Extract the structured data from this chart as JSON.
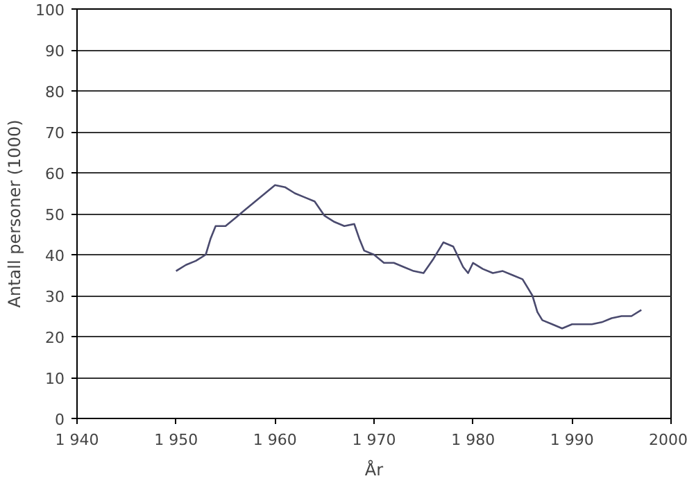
{
  "chart_data": {
    "type": "line",
    "xlabel": "År",
    "ylabel": "Antall personer (1000)",
    "x": [
      1950,
      1951,
      1952,
      1953,
      1953.5,
      1954,
      1955,
      1956,
      1957,
      1958,
      1959,
      1960,
      1961,
      1962,
      1963,
      1964,
      1965,
      1966,
      1967,
      1968,
      1968.5,
      1969,
      1970,
      1971,
      1972,
      1973,
      1974,
      1975,
      1976,
      1977,
      1978,
      1979,
      1979.5,
      1980,
      1981,
      1982,
      1983,
      1984,
      1985,
      1986,
      1986.5,
      1987,
      1988,
      1989,
      1990,
      1991,
      1992,
      1993,
      1994,
      1995,
      1996,
      1997
    ],
    "series": [
      {
        "color": "#4a4a6e",
        "values": [
          36,
          37.5,
          38.5,
          40,
          44,
          47,
          47,
          49,
          51,
          53,
          55,
          57,
          56.5,
          55,
          54,
          53,
          49.5,
          48,
          47,
          47.5,
          44,
          41,
          40,
          38,
          38,
          37,
          36,
          35.5,
          39,
          43,
          42,
          37,
          35.5,
          38,
          36.5,
          35.5,
          36,
          35,
          34,
          30,
          26,
          24,
          23,
          22,
          23,
          23,
          23,
          23.5,
          24.5,
          25,
          25,
          26.5
        ]
      }
    ],
    "xlim": [
      1940,
      2000
    ],
    "ylim": [
      0,
      100
    ],
    "xticks": [
      {
        "value": 1940,
        "label": "1 940"
      },
      {
        "value": 1950,
        "label": "1 950"
      },
      {
        "value": 1960,
        "label": "1 960"
      },
      {
        "value": 1970,
        "label": "1 970"
      },
      {
        "value": 1980,
        "label": "1 980"
      },
      {
        "value": 1990,
        "label": "1 990"
      },
      2000
    ],
    "yticks": [
      0,
      10,
      20,
      30,
      40,
      50,
      60,
      70,
      80,
      90,
      100
    ],
    "grid": "y",
    "marker": "none",
    "line_style": "solid"
  }
}
